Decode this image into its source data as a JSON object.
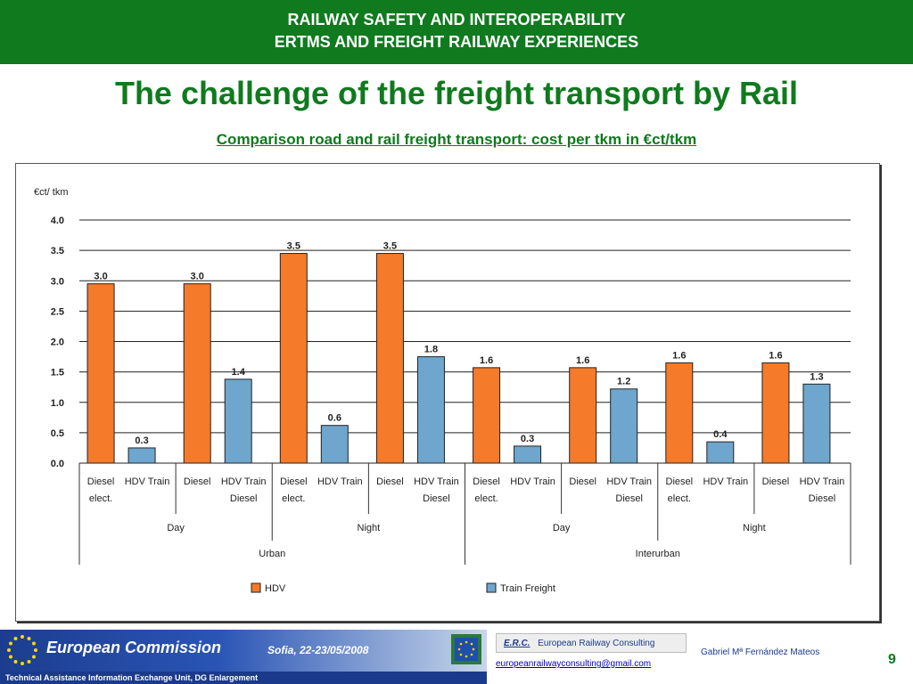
{
  "header": {
    "line1": "RAILWAY SAFETY AND INTEROPERABILITY",
    "line2": "ERTMS AND FREIGHT RAILWAY EXPERIENCES"
  },
  "slide": {
    "title": "The challenge of the freight transport by Rail",
    "subtitle": "Comparison road and rail freight transport: cost per tkm in €ct/tkm"
  },
  "chart_data": {
    "type": "bar",
    "ylabel": "€ct/ tkm",
    "ylim": [
      0,
      4.0
    ],
    "yticks": [
      "0.0",
      "0.5",
      "1.0",
      "1.5",
      "2.0",
      "2.5",
      "3.0",
      "3.5",
      "4.0"
    ],
    "grid": true,
    "legend_position": "bottom",
    "categories": [
      "Diesel elect.",
      "Diesel Diesel",
      "Diesel elect.",
      "Diesel Diesel",
      "Diesel elect.",
      "Diesel Diesel",
      "Diesel elect.",
      "Diesel Diesel"
    ],
    "category_labels": [
      {
        "hdv": "Diesel",
        "train_top": "HDV Train",
        "left": "elect.",
        "right": ""
      },
      {
        "hdv": "Diesel",
        "train_top": "HDV Train",
        "left": "",
        "right": "Diesel"
      },
      {
        "hdv": "Diesel",
        "train_top": "HDV Train",
        "left": "elect.",
        "right": ""
      },
      {
        "hdv": "Diesel",
        "train_top": "HDV Train",
        "left": "",
        "right": "Diesel"
      },
      {
        "hdv": "Diesel",
        "train_top": "HDV Train",
        "left": "elect.",
        "right": ""
      },
      {
        "hdv": "Diesel",
        "train_top": "HDV Train",
        "left": "",
        "right": "Diesel"
      },
      {
        "hdv": "Diesel",
        "train_top": "HDV Train",
        "left": "elect.",
        "right": ""
      },
      {
        "hdv": "Diesel",
        "train_top": "HDV Train",
        "left": "",
        "right": "Diesel"
      }
    ],
    "group_level2": [
      "Day",
      "Night",
      "Day",
      "Night"
    ],
    "group_level1": [
      "Urban",
      "Interurban"
    ],
    "series": [
      {
        "name": "HDV",
        "color": "#f57a2a",
        "values": [
          2.95,
          2.95,
          3.45,
          3.45,
          1.57,
          1.57,
          1.65,
          1.65
        ],
        "labels": [
          "3.0",
          "3.0",
          "3.5",
          "3.5",
          "1.6",
          "1.6",
          "1.6",
          "1.6"
        ]
      },
      {
        "name": "Train Freight",
        "color": "#6ea6cd",
        "values": [
          0.25,
          1.38,
          0.62,
          1.75,
          0.28,
          1.22,
          0.35,
          1.3
        ],
        "labels": [
          "0.3",
          "1.4",
          "0.6",
          "1.8",
          "0.3",
          "1.2",
          "0.4",
          "1.3"
        ]
      }
    ]
  },
  "footer": {
    "ec_name": "European Commission",
    "place_date": "Sofia, 22-23/05/2008",
    "ec_strip": "Technical Assistance Information Exchange Unit, DG Enlargement",
    "erc_abbr": "E.R.C.",
    "erc_name": "European Railway Consulting",
    "email": "europeanrailwayconsulting@gmail.com",
    "author": "Gabriel Mª Fernández Mateos",
    "page_number": "9"
  },
  "colors": {
    "brand_green": "#0f7a1e",
    "hdv": "#f57a2a",
    "train": "#6ea6cd",
    "ec_blue": "#1c3d8f"
  },
  "icons": {
    "eu_stars": "eu-stars-icon",
    "eu_flag": "eu-flag-icon"
  }
}
